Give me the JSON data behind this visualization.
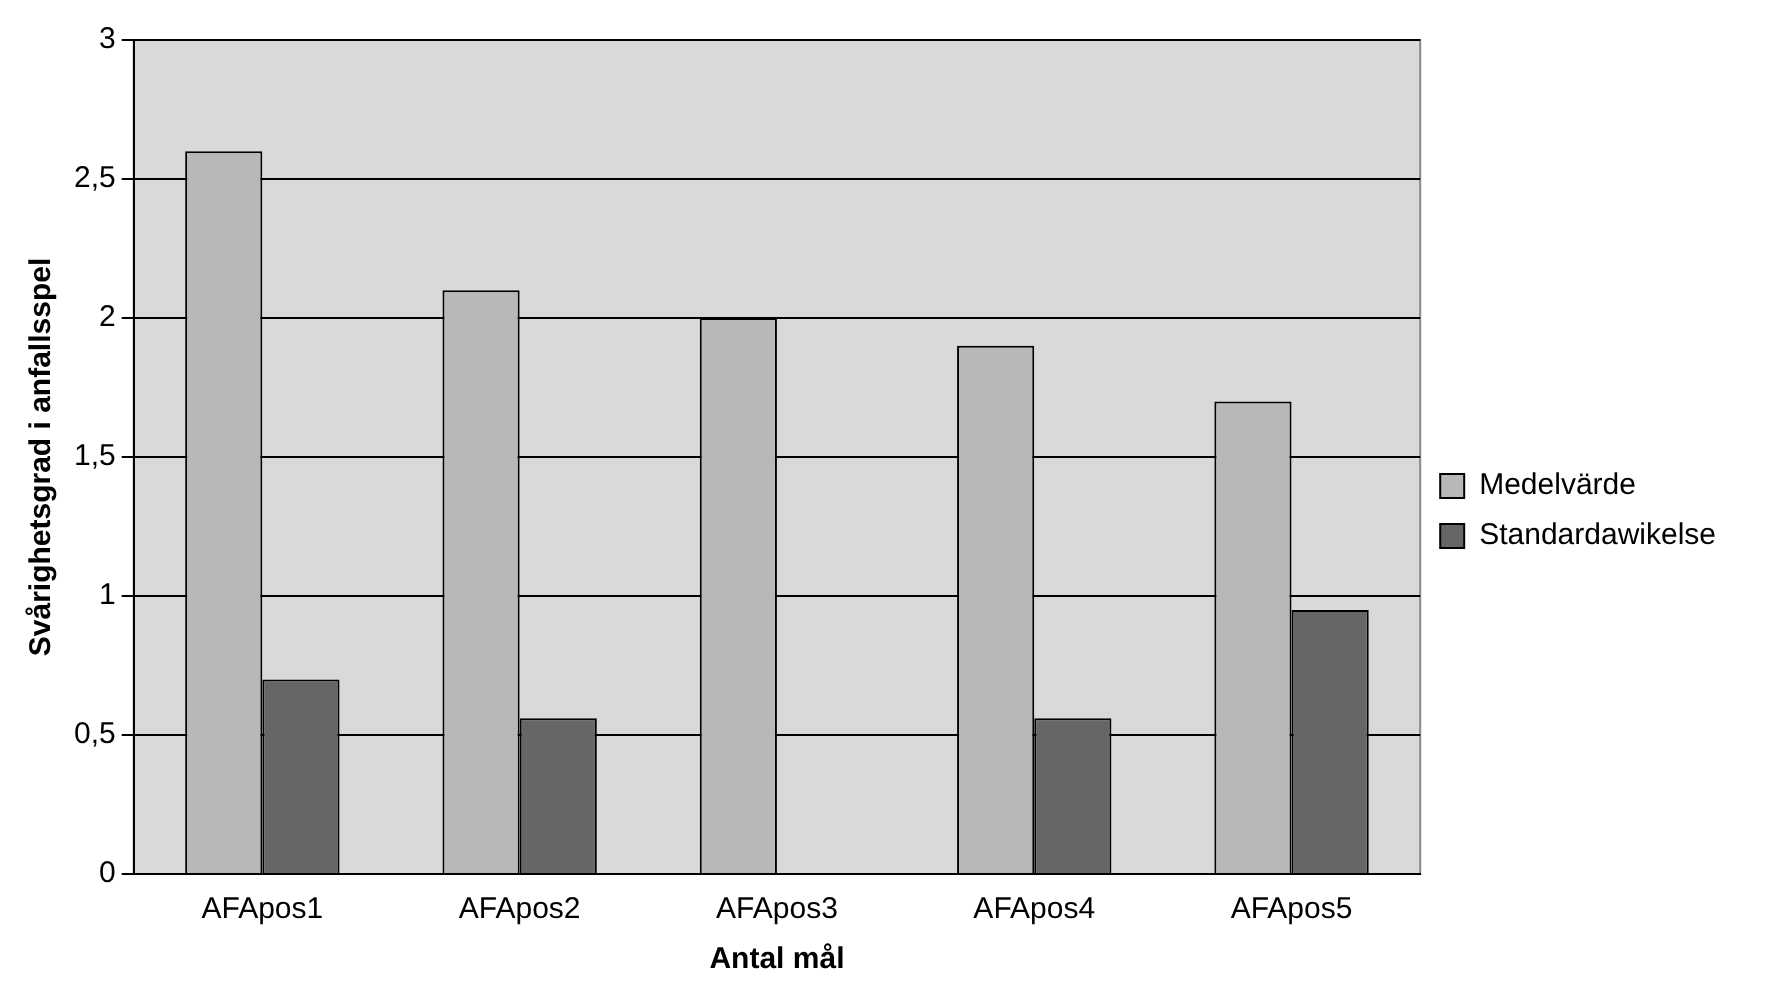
{
  "chart_data": {
    "type": "bar",
    "xlabel": "Antal mål",
    "ylabel": "Svårighetsgrad i anfallsspel",
    "categories": [
      "AFApos1",
      "AFApos2",
      "AFApos3",
      "AFApos4",
      "AFApos5"
    ],
    "series": [
      {
        "name": "Medelvärde",
        "color": "#b8b8b8",
        "values": [
          2.6,
          2.1,
          2.0,
          1.9,
          1.7
        ]
      },
      {
        "name": "Standardawikelse",
        "color": "#666666",
        "values": [
          0.7,
          0.56,
          0,
          0.56,
          0.95
        ]
      }
    ],
    "ylim": [
      0,
      3
    ],
    "yticks": [
      0,
      {
        "value": 0.5,
        "label": "0,5"
      },
      1,
      {
        "value": 1.5,
        "label": "1,5"
      },
      2,
      {
        "value": 2.5,
        "label": "2,5"
      },
      3
    ],
    "grid": "y",
    "legend": "right"
  }
}
